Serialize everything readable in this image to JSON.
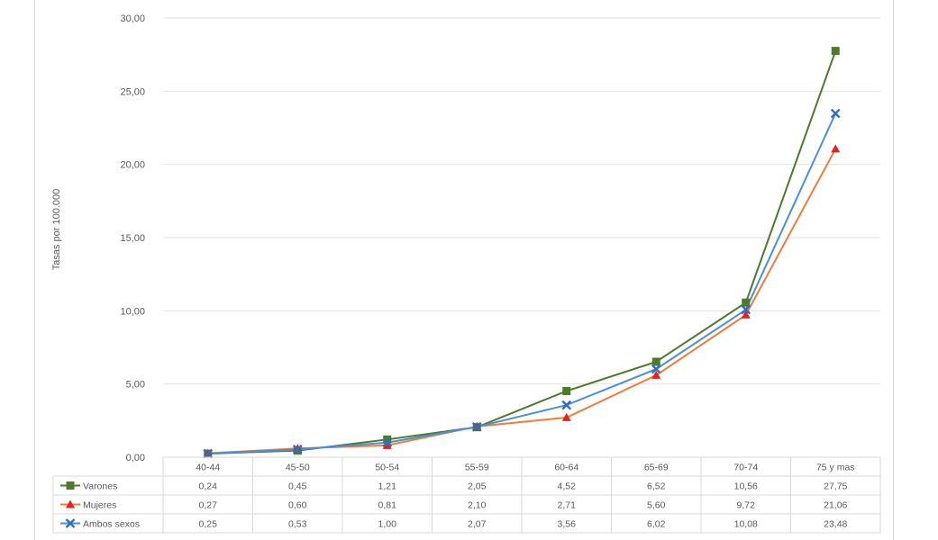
{
  "chart_data": {
    "type": "line",
    "title": "",
    "ylabel": "Tasas por 100.000",
    "xlabel": "",
    "ylim": [
      0,
      30
    ],
    "y_ticks": [
      "0,00",
      "5,00",
      "10,00",
      "15,00",
      "20,00",
      "25,00",
      "30,00"
    ],
    "categories": [
      "40-44",
      "45-50",
      "50-54",
      "55-59",
      "60-64",
      "65-69",
      "70-74",
      "75 y mas"
    ],
    "grid": true,
    "legend": "data-table-below",
    "series": [
      {
        "name": "Varones",
        "color": "#4e7a2b",
        "marker": "square",
        "values": [
          0.24,
          0.45,
          1.21,
          2.05,
          4.52,
          6.52,
          10.56,
          27.75
        ],
        "labels": [
          "0,24",
          "0,45",
          "1,21",
          "2,05",
          "4,52",
          "6,52",
          "10,56",
          "27,75"
        ]
      },
      {
        "name": "Mujeres",
        "color": "#f07c3c",
        "marker_color": "#e8201c",
        "marker": "triangle",
        "values": [
          0.27,
          0.6,
          0.81,
          2.1,
          2.71,
          5.6,
          9.72,
          21.06
        ],
        "labels": [
          "0,27",
          "0,60",
          "0,81",
          "2,10",
          "2,71",
          "5,60",
          "9,72",
          "21,06"
        ]
      },
      {
        "name": "Ambos sexos",
        "color": "#4a90d9",
        "marker_color": "#2f6fbf",
        "marker": "x",
        "values": [
          0.25,
          0.53,
          1.0,
          2.07,
          3.56,
          6.02,
          10.08,
          23.48
        ],
        "labels": [
          "0,25",
          "0,53",
          "1,00",
          "2,07",
          "3,56",
          "6,02",
          "10,08",
          "23,48"
        ]
      }
    ]
  }
}
